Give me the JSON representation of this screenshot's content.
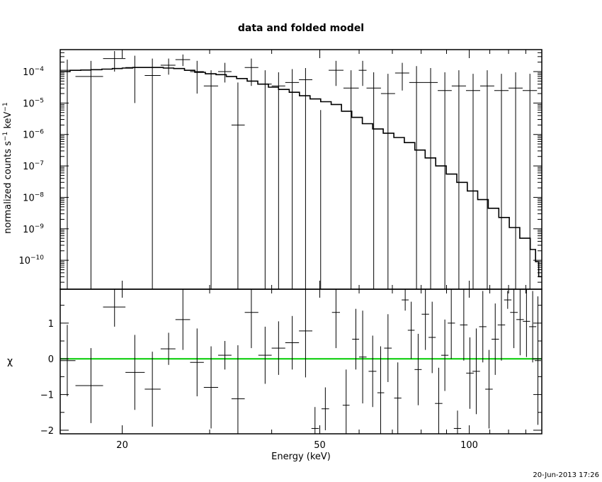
{
  "chart_data": [
    {
      "panel": "top",
      "type": "line",
      "title": "data and folded model",
      "xlabel": "",
      "ylabel_parts": {
        "base": "normalized counts s",
        "sup1": "−1",
        "mid": " keV",
        "sup2": "−1"
      },
      "x_scale": "log",
      "y_scale": "log",
      "xlim": [
        15,
        140
      ],
      "ylim": [
        1.2e-11,
        0.0005
      ],
      "y_ticks": [
        {
          "value": 1e-10,
          "label_base": "10",
          "label_exp": "−10"
        },
        {
          "value": 1e-09,
          "label_base": "10",
          "label_exp": "−9"
        },
        {
          "value": 1e-08,
          "label_base": "10",
          "label_exp": "−8"
        },
        {
          "value": 1e-07,
          "label_base": "10",
          "label_exp": "−7"
        },
        {
          "value": 1e-06,
          "label_base": "10",
          "label_exp": "−6"
        },
        {
          "value": 1e-05,
          "label_base": "10",
          "label_exp": "−5"
        },
        {
          "value": 0.0001,
          "label_base": "10",
          "label_exp": "−4"
        }
      ],
      "model": [
        [
          15.0,
          0.0001
        ],
        [
          15.7,
          0.00011
        ],
        [
          16.5,
          0.000112
        ],
        [
          17.3,
          0.000115
        ],
        [
          18.2,
          0.00012
        ],
        [
          19.1,
          0.000125
        ],
        [
          20.0,
          0.00013
        ],
        [
          21.0,
          0.000135
        ],
        [
          22.0,
          0.000135
        ],
        [
          23.1,
          0.000135
        ],
        [
          24.2,
          0.00013
        ],
        [
          25.4,
          0.000125
        ],
        [
          26.7,
          0.00011
        ],
        [
          28.0,
          9.5e-05
        ],
        [
          29.4,
          8.5e-05
        ],
        [
          30.9,
          8e-05
        ],
        [
          32.4,
          7e-05
        ],
        [
          34.0,
          6e-05
        ],
        [
          35.7,
          5e-05
        ],
        [
          37.5,
          4e-05
        ],
        [
          39.4,
          3.2e-05
        ],
        [
          41.3,
          2.7e-05
        ],
        [
          43.4,
          2.2e-05
        ],
        [
          45.5,
          1.7e-05
        ],
        [
          47.8,
          1.35e-05
        ],
        [
          50.2,
          1.1e-05
        ],
        [
          52.7,
          9e-06
        ],
        [
          55.3,
          5.5e-06
        ],
        [
          58.0,
          3.5e-06
        ],
        [
          60.9,
          2.2e-06
        ],
        [
          63.9,
          1.5e-06
        ],
        [
          67.1,
          1.1e-06
        ],
        [
          70.5,
          8e-07
        ],
        [
          74.0,
          5.5e-07
        ],
        [
          77.7,
          3.2e-07
        ],
        [
          81.5,
          1.8e-07
        ],
        [
          85.6,
          1e-07
        ],
        [
          89.9,
          5.5e-08
        ],
        [
          94.4,
          3e-08
        ],
        [
          99.1,
          1.6e-08
        ],
        [
          104.0,
          8.5e-09
        ],
        [
          109.2,
          4.5e-09
        ],
        [
          114.7,
          2.3e-09
        ],
        [
          120.4,
          1.1e-09
        ],
        [
          126.4,
          5e-10
        ],
        [
          132.7,
          2.2e-10
        ],
        [
          136.0,
          9e-11
        ],
        [
          138.0,
          3e-11
        ],
        [
          140.0,
          1.3e-11
        ]
      ],
      "data": [
        {
          "x": 15.5,
          "xlo": 15.0,
          "xhi": 16.1,
          "y": 0.00011,
          "ylo": 1e-12,
          "yhi": 0.00024
        },
        {
          "x": 17.3,
          "xlo": 16.1,
          "xhi": 18.3,
          "y": 7e-05,
          "ylo": 1e-12,
          "yhi": 0.00022
        },
        {
          "x": 19.3,
          "xlo": 18.3,
          "xhi": 20.3,
          "y": 0.00026,
          "ylo": 0.0001,
          "yhi": 0.00045
        },
        {
          "x": 21.2,
          "xlo": 20.3,
          "xhi": 22.2,
          "y": 0.000135,
          "ylo": 1e-05,
          "yhi": 0.00032
        },
        {
          "x": 23.0,
          "xlo": 22.2,
          "xhi": 23.9,
          "y": 7.5e-05,
          "ylo": 1e-12,
          "yhi": 0.00026
        },
        {
          "x": 24.8,
          "xlo": 23.9,
          "xhi": 25.6,
          "y": 0.00016,
          "ylo": 8e-05,
          "yhi": 0.00026
        },
        {
          "x": 26.5,
          "xlo": 25.6,
          "xhi": 27.4,
          "y": 0.00024,
          "ylo": 0.00015,
          "yhi": 0.00035
        },
        {
          "x": 28.3,
          "xlo": 27.4,
          "xhi": 29.2,
          "y": 0.0001,
          "ylo": 2e-05,
          "yhi": 0.00022
        },
        {
          "x": 30.2,
          "xlo": 29.2,
          "xhi": 31.2,
          "y": 3.5e-05,
          "ylo": 1e-12,
          "yhi": 0.00011
        },
        {
          "x": 32.2,
          "xlo": 31.2,
          "xhi": 33.2,
          "y": 0.0001,
          "ylo": 4.5e-05,
          "yhi": 0.00019
        },
        {
          "x": 34.2,
          "xlo": 33.2,
          "xhi": 35.3,
          "y": 2e-06,
          "ylo": 1e-12,
          "yhi": 4.5e-05
        },
        {
          "x": 36.4,
          "xlo": 35.3,
          "xhi": 37.6,
          "y": 0.000135,
          "ylo": 3.5e-05,
          "yhi": 0.00026
        },
        {
          "x": 38.8,
          "xlo": 37.6,
          "xhi": 40.0,
          "y": 4e-05,
          "ylo": 1e-12,
          "yhi": 0.00011
        },
        {
          "x": 41.3,
          "xlo": 40.0,
          "xhi": 42.6,
          "y": 3.5e-05,
          "ylo": 1e-12,
          "yhi": 9.5e-05
        },
        {
          "x": 44.0,
          "xlo": 42.6,
          "xhi": 45.4,
          "y": 4.5e-05,
          "ylo": 1e-12,
          "yhi": 0.00012
        },
        {
          "x": 46.8,
          "xlo": 45.4,
          "xhi": 48.3,
          "y": 5.5e-05,
          "ylo": 1e-12,
          "yhi": 0.00013
        },
        {
          "x": 50.2,
          "xlo": 48.3,
          "xhi": 52.1,
          "y": 1e-12,
          "ylo": 1e-12,
          "yhi": 6e-06
        },
        {
          "x": 53.9,
          "xlo": 52.1,
          "xhi": 55.8,
          "y": 0.00011,
          "ylo": 3.5e-05,
          "yhi": 0.00022
        },
        {
          "x": 57.8,
          "xlo": 55.8,
          "xhi": 59.9,
          "y": 3e-05,
          "ylo": 1e-12,
          "yhi": 0.00011
        },
        {
          "x": 61.0,
          "xlo": 59.9,
          "xhi": 62.1,
          "y": 0.00011,
          "ylo": 3.5e-05,
          "yhi": 0.00022
        },
        {
          "x": 64.2,
          "xlo": 62.1,
          "xhi": 66.4,
          "y": 3e-05,
          "ylo": 1e-12,
          "yhi": 9.5e-05
        },
        {
          "x": 68.6,
          "xlo": 66.4,
          "xhi": 70.9,
          "y": 2e-05,
          "ylo": 1e-12,
          "yhi": 8.5e-05
        },
        {
          "x": 73.3,
          "xlo": 70.9,
          "xhi": 75.7,
          "y": 9e-05,
          "ylo": 2.5e-05,
          "yhi": 0.00019
        },
        {
          "x": 78.3,
          "xlo": 75.7,
          "xhi": 80.9,
          "y": 4.5e-05,
          "ylo": 1e-12,
          "yhi": 0.00015
        },
        {
          "x": 83.6,
          "xlo": 80.9,
          "xhi": 86.4,
          "y": 4.5e-05,
          "ylo": 1e-12,
          "yhi": 0.00013
        },
        {
          "x": 89.3,
          "xlo": 86.4,
          "xhi": 92.2,
          "y": 2.5e-05,
          "ylo": 1e-12,
          "yhi": 9.5e-05
        },
        {
          "x": 95.3,
          "xlo": 92.2,
          "xhi": 98.5,
          "y": 3.5e-05,
          "ylo": 1e-12,
          "yhi": 0.00011
        },
        {
          "x": 101.8,
          "xlo": 98.5,
          "xhi": 105.2,
          "y": 2.5e-05,
          "ylo": 1e-12,
          "yhi": 8.5e-05
        },
        {
          "x": 108.7,
          "xlo": 105.2,
          "xhi": 112.3,
          "y": 3.5e-05,
          "ylo": 1e-12,
          "yhi": 0.00011
        },
        {
          "x": 116.1,
          "xlo": 112.3,
          "xhi": 120.0,
          "y": 2.5e-05,
          "ylo": 1e-12,
          "yhi": 8.5e-05
        },
        {
          "x": 124.0,
          "xlo": 120.0,
          "xhi": 128.1,
          "y": 3e-05,
          "ylo": 1e-12,
          "yhi": 9.5e-05
        },
        {
          "x": 132.5,
          "xlo": 128.1,
          "xhi": 136.9,
          "y": 2.5e-05,
          "ylo": 1e-12,
          "yhi": 8.5e-05
        }
      ]
    },
    {
      "panel": "bottom",
      "type": "scatter",
      "xlabel": "Energy (keV)",
      "ylabel": "χ",
      "x_scale": "log",
      "xlim": [
        15,
        140
      ],
      "ylim": [
        -2.1,
        1.95
      ],
      "x_ticks": [
        20,
        50,
        100
      ],
      "y_ticks": [
        -2,
        -1,
        0,
        1
      ],
      "zero_line_color": "#00cc00",
      "points": [
        {
          "x": 15.5,
          "xlo": 15.0,
          "xhi": 16.1,
          "y": -0.05,
          "err": 1.0
        },
        {
          "x": 17.3,
          "xlo": 16.1,
          "xhi": 18.3,
          "y": -0.75,
          "err": 1.05
        },
        {
          "x": 19.3,
          "xlo": 18.3,
          "xhi": 20.3,
          "y": 1.45,
          "err": 0.55
        },
        {
          "x": 21.2,
          "xlo": 20.3,
          "xhi": 22.2,
          "y": -0.38,
          "err": 1.05
        },
        {
          "x": 23.0,
          "xlo": 22.2,
          "xhi": 23.9,
          "y": -0.85,
          "err": 1.05
        },
        {
          "x": 24.8,
          "xlo": 23.9,
          "xhi": 25.6,
          "y": 0.28,
          "err": 0.45
        },
        {
          "x": 26.5,
          "xlo": 25.6,
          "xhi": 27.4,
          "y": 1.1,
          "err": 0.85
        },
        {
          "x": 28.3,
          "xlo": 27.4,
          "xhi": 29.2,
          "y": -0.1,
          "err": 0.95
        },
        {
          "x": 30.2,
          "xlo": 29.2,
          "xhi": 31.2,
          "y": -0.8,
          "err": 1.15
        },
        {
          "x": 32.2,
          "xlo": 31.2,
          "xhi": 33.2,
          "y": 0.1,
          "err": 0.4
        },
        {
          "x": 34.2,
          "xlo": 33.2,
          "xhi": 35.3,
          "y": -1.12,
          "err": 1.5
        },
        {
          "x": 36.4,
          "xlo": 35.3,
          "xhi": 37.6,
          "y": 1.3,
          "err": 1.0
        },
        {
          "x": 38.8,
          "xlo": 37.6,
          "xhi": 40.0,
          "y": 0.1,
          "err": 0.8
        },
        {
          "x": 41.3,
          "xlo": 40.0,
          "xhi": 42.6,
          "y": 0.3,
          "err": 0.75
        },
        {
          "x": 44.0,
          "xlo": 42.6,
          "xhi": 45.4,
          "y": 0.45,
          "err": 0.75
        },
        {
          "x": 46.8,
          "xlo": 45.4,
          "xhi": 48.3,
          "y": 0.78,
          "err": 1.3
        },
        {
          "x": 48.9,
          "xlo": 48.1,
          "xhi": 49.8,
          "y": -1.95,
          "err": 0.6
        },
        {
          "x": 51.3,
          "xlo": 50.4,
          "xhi": 52.2,
          "y": -1.4,
          "err": 0.6
        },
        {
          "x": 53.9,
          "xlo": 52.9,
          "xhi": 54.9,
          "y": 1.3,
          "err": 1.0
        },
        {
          "x": 56.5,
          "xlo": 55.6,
          "xhi": 57.4,
          "y": -1.3,
          "err": 1.0
        },
        {
          "x": 59.1,
          "xlo": 58.1,
          "xhi": 60.0,
          "y": 0.55,
          "err": 0.85
        },
        {
          "x": 61.0,
          "xlo": 60.0,
          "xhi": 62.1,
          "y": 0.05,
          "err": 1.3
        },
        {
          "x": 63.9,
          "xlo": 62.7,
          "xhi": 65.0,
          "y": -0.35,
          "err": 1.0
        },
        {
          "x": 66.3,
          "xlo": 65.3,
          "xhi": 67.4,
          "y": -0.95,
          "err": 1.3
        },
        {
          "x": 68.6,
          "xlo": 67.4,
          "xhi": 69.8,
          "y": 0.3,
          "err": 0.95
        },
        {
          "x": 71.8,
          "xlo": 70.6,
          "xhi": 73.0,
          "y": -1.1,
          "err": 1.0
        },
        {
          "x": 74.3,
          "xlo": 73.1,
          "xhi": 75.5,
          "y": 1.65,
          "err": 0.3
        },
        {
          "x": 76.4,
          "xlo": 75.2,
          "xhi": 77.6,
          "y": 0.8,
          "err": 0.8
        },
        {
          "x": 78.9,
          "xlo": 77.6,
          "xhi": 80.2,
          "y": -0.3,
          "err": 1.0
        },
        {
          "x": 81.6,
          "xlo": 80.2,
          "xhi": 83.0,
          "y": 1.25,
          "err": 1.0
        },
        {
          "x": 84.2,
          "xlo": 82.8,
          "xhi": 85.6,
          "y": 0.6,
          "err": 1.0
        },
        {
          "x": 86.8,
          "xlo": 85.3,
          "xhi": 88.3,
          "y": -1.25,
          "err": 1.0
        },
        {
          "x": 89.3,
          "xlo": 87.8,
          "xhi": 90.8,
          "y": 0.1,
          "err": 1.0
        },
        {
          "x": 92.0,
          "xlo": 90.5,
          "xhi": 93.6,
          "y": 1.0,
          "err": 1.0
        },
        {
          "x": 94.7,
          "xlo": 93.1,
          "xhi": 96.3,
          "y": -1.95,
          "err": 0.5
        },
        {
          "x": 97.5,
          "xlo": 95.8,
          "xhi": 99.2,
          "y": 0.95,
          "err": 1.0
        },
        {
          "x": 100.3,
          "xlo": 98.6,
          "xhi": 102.1,
          "y": -0.4,
          "err": 1.0
        },
        {
          "x": 103.3,
          "xlo": 101.5,
          "xhi": 105.1,
          "y": -0.35,
          "err": 1.2
        },
        {
          "x": 106.5,
          "xlo": 104.7,
          "xhi": 108.3,
          "y": 0.9,
          "err": 1.0
        },
        {
          "x": 109.6,
          "xlo": 107.7,
          "xhi": 111.5,
          "y": -0.85,
          "err": 1.1
        },
        {
          "x": 112.8,
          "xlo": 110.9,
          "xhi": 114.8,
          "y": 0.55,
          "err": 1.0
        },
        {
          "x": 116.1,
          "xlo": 114.1,
          "xhi": 118.1,
          "y": 0.95,
          "err": 1.0
        },
        {
          "x": 119.5,
          "xlo": 117.5,
          "xhi": 121.6,
          "y": 1.65,
          "err": 0.25
        },
        {
          "x": 123.0,
          "xlo": 120.9,
          "xhi": 125.2,
          "y": 1.3,
          "err": 1.0
        },
        {
          "x": 126.6,
          "xlo": 124.4,
          "xhi": 128.8,
          "y": 1.1,
          "err": 1.0
        },
        {
          "x": 130.4,
          "xlo": 128.2,
          "xhi": 132.6,
          "y": 1.05,
          "err": 1.0
        },
        {
          "x": 134.2,
          "xlo": 132.0,
          "xhi": 136.5,
          "y": 0.9,
          "err": 1.0
        },
        {
          "x": 137.5,
          "xlo": 135.5,
          "xhi": 139.5,
          "y": -0.05,
          "err": 1.8
        }
      ]
    }
  ],
  "timestamp": "20-Jun-2013 17:26"
}
